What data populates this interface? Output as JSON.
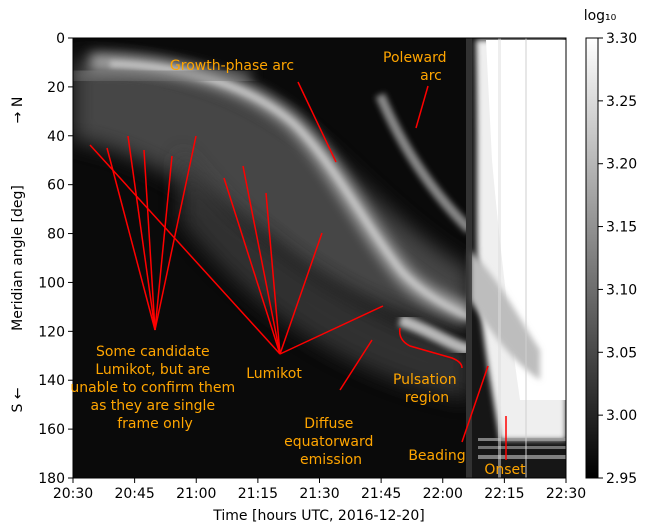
{
  "chart_data": {
    "type": "heatmap",
    "xlabel": "Time [hours UTC, 2016-12-20]",
    "ylabel": "Meridian angle [deg]",
    "y_north_label": "→ N",
    "y_south_label": "S ←",
    "x_ticks": [
      "20:30",
      "20:45",
      "21:00",
      "21:15",
      "21:30",
      "21:45",
      "22:00",
      "22:15",
      "22:30"
    ],
    "y_ticks": [
      "0",
      "20",
      "40",
      "60",
      "80",
      "100",
      "120",
      "140",
      "160",
      "180"
    ],
    "xlim": [
      "20:30",
      "22:30"
    ],
    "ylim": [
      0,
      180
    ],
    "y_inverted": true,
    "colorbar": {
      "label": "log₁₀",
      "ticks": [
        "2.95",
        "3.00",
        "3.05",
        "3.10",
        "3.15",
        "3.20",
        "3.25",
        "3.30"
      ],
      "range": [
        2.95,
        3.3
      ],
      "colormap": "gray"
    },
    "annotation_color": "#ffa500",
    "line_color": "#ff0000",
    "annotations": {
      "growth_phase_arc": "Growth-phase arc",
      "poleward_arc": "Poleward arc",
      "candidates": "Some candidate Lumikot, but are unable to confirm them as they are single frame only",
      "lumikot": "Lumikot",
      "diffuse": "Diffuse equatorward emission",
      "pulsation": "Pulsation region",
      "beading": "Beading",
      "onset": "Onset"
    }
  }
}
